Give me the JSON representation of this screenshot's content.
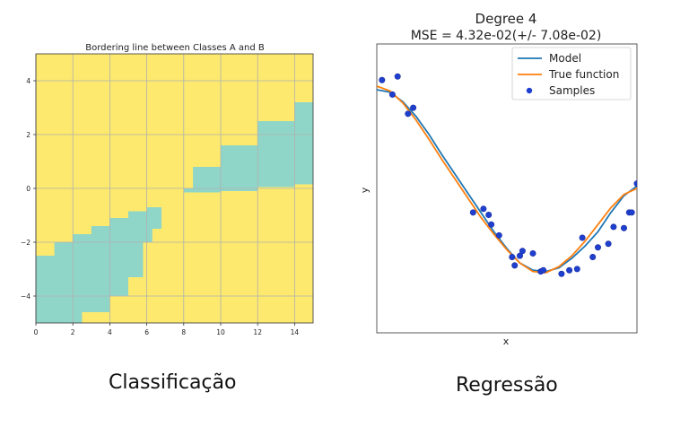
{
  "chart_data": [
    {
      "type": "heatmap",
      "title": "Bordering line between Classes A and B",
      "xlabel": "",
      "ylabel": "",
      "xlim": [
        0,
        15
      ],
      "ylim": [
        -5,
        5
      ],
      "xticks": [
        "0",
        "2",
        "4",
        "6",
        "8",
        "10",
        "12",
        "14"
      ],
      "yticks": [
        "4",
        "2",
        "0",
        "−2",
        "−4"
      ],
      "grid": true,
      "colors": {
        "background": "#FDE96E",
        "region": "#8FD6C8"
      },
      "regions": [
        {
          "name": "",
          "left_lower": [
            [
              0,
              -2.5
            ],
            [
              1,
              -2
            ],
            [
              2,
              -1.7
            ],
            [
              3,
              -1.4
            ],
            [
              4,
              -1.1
            ],
            [
              5,
              -0.85
            ],
            [
              6,
              -0.7
            ],
            [
              7,
              -0.7
            ]
          ],
          "bottom": [
            [
              2.5,
              -5
            ],
            [
              4,
              -4.6
            ],
            [
              5,
              -4
            ],
            [
              5.8,
              -3.3
            ],
            [
              6.3,
              -2
            ],
            [
              6.8,
              -1.5
            ],
            [
              7,
              -0.7
            ]
          ]
        },
        {
          "name": "",
          "right_upper": [
            [
              8,
              0
            ],
            [
              8.5,
              0.8
            ],
            [
              10,
              1.6
            ],
            [
              12,
              2.5
            ],
            [
              14,
              3.2
            ],
            [
              15,
              3.5
            ]
          ],
          "bottom": [
            [
              8,
              -0.2
            ],
            [
              10,
              -0.15
            ],
            [
              12,
              -0.1
            ],
            [
              14,
              0.05
            ],
            [
              15,
              0.15
            ]
          ]
        }
      ]
    },
    {
      "type": "line",
      "title": "Degree 4",
      "subtitle": "MSE = 4.32e-02(+/- 7.08e-02)",
      "xlabel": "x",
      "ylabel": "y",
      "xlim": [
        0,
        1
      ],
      "ylim": [
        -1.2,
        1.2
      ],
      "legend_placement": "top-right",
      "series": [
        {
          "name": "Model",
          "color": "#1f77b4",
          "x": [
            0,
            0.05,
            0.1,
            0.15,
            0.2,
            0.25,
            0.3,
            0.35,
            0.4,
            0.45,
            0.5,
            0.55,
            0.6,
            0.65,
            0.7,
            0.75,
            0.8,
            0.85,
            0.9,
            0.95,
            1.0
          ],
          "y": [
            0.82,
            0.8,
            0.72,
            0.6,
            0.45,
            0.28,
            0.12,
            -0.04,
            -0.2,
            -0.36,
            -0.5,
            -0.62,
            -0.68,
            -0.69,
            -0.66,
            -0.58,
            -0.48,
            -0.36,
            -0.2,
            -0.06,
            0.02
          ]
        },
        {
          "name": "True function",
          "color": "#ff7f0e",
          "x": [
            0,
            0.05,
            0.1,
            0.15,
            0.2,
            0.25,
            0.3,
            0.35,
            0.4,
            0.45,
            0.5,
            0.55,
            0.6,
            0.65,
            0.7,
            0.75,
            0.8,
            0.85,
            0.9,
            0.95,
            1.0
          ],
          "y": [
            0.85,
            0.81,
            0.71,
            0.57,
            0.41,
            0.24,
            0.08,
            -0.08,
            -0.24,
            -0.38,
            -0.51,
            -0.62,
            -0.69,
            -0.7,
            -0.65,
            -0.56,
            -0.44,
            -0.3,
            -0.16,
            -0.05,
            0.0
          ]
        },
        {
          "name": "Samples",
          "color": "#1f3fcf",
          "kind": "scatter",
          "x": [
            0.02,
            0.06,
            0.08,
            0.12,
            0.14,
            0.37,
            0.41,
            0.43,
            0.44,
            0.47,
            0.52,
            0.53,
            0.55,
            0.56,
            0.6,
            0.63,
            0.64,
            0.71,
            0.74,
            0.77,
            0.79,
            0.83,
            0.85,
            0.89,
            0.91,
            0.95,
            0.97,
            0.98,
            1.0
          ],
          "y": [
            0.9,
            0.78,
            0.93,
            0.62,
            0.67,
            -0.2,
            -0.17,
            -0.22,
            -0.3,
            -0.39,
            -0.57,
            -0.64,
            -0.56,
            -0.52,
            -0.54,
            -0.69,
            -0.68,
            -0.71,
            -0.68,
            -0.67,
            -0.41,
            -0.57,
            -0.49,
            -0.46,
            -0.32,
            -0.33,
            -0.2,
            -0.2,
            0.04
          ]
        }
      ]
    }
  ],
  "captions": {
    "left": "Classificação",
    "right": "Regressão"
  }
}
